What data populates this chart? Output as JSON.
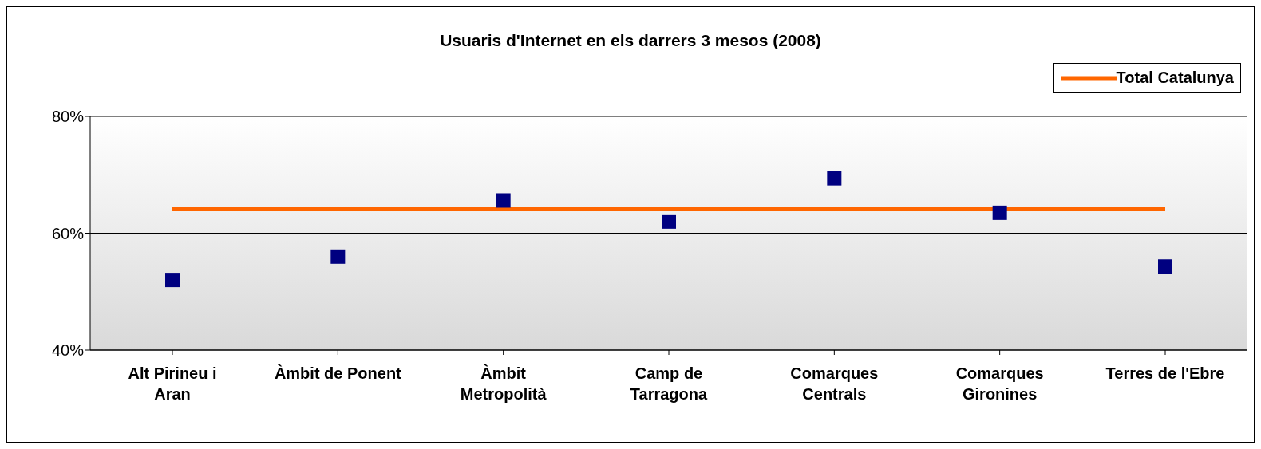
{
  "chart_data": {
    "type": "scatter",
    "title": "Usuaris d'Internet en els darrers 3 mesos (2008)",
    "categories": [
      "Alt Pirineu i Aran",
      "Àmbit de Ponent",
      "Àmbit Metropolità",
      "Camp de Tarragona",
      "Comarques Centrals",
      "Comarques Gironines",
      "Terres de l'Ebre"
    ],
    "series": [
      {
        "color": "#000080",
        "values": [
          52,
          56,
          65.6,
          62,
          69.4,
          63.5,
          54.3
        ],
        "marker": "square"
      },
      {
        "type": "line",
        "name": "Total Catalunya",
        "color": "#ff6600",
        "values": [
          64.2,
          64.2,
          64.2,
          64.2,
          64.2,
          null,
          64.2
        ],
        "marker": "none"
      }
    ],
    "ylim": [
      40,
      80
    ],
    "yticks": [
      {
        "value": 40,
        "label": "40%"
      },
      {
        "value": 60,
        "label": "60%"
      },
      {
        "value": 80,
        "label": "80%"
      }
    ],
    "grid": "y",
    "legend": "top right"
  }
}
